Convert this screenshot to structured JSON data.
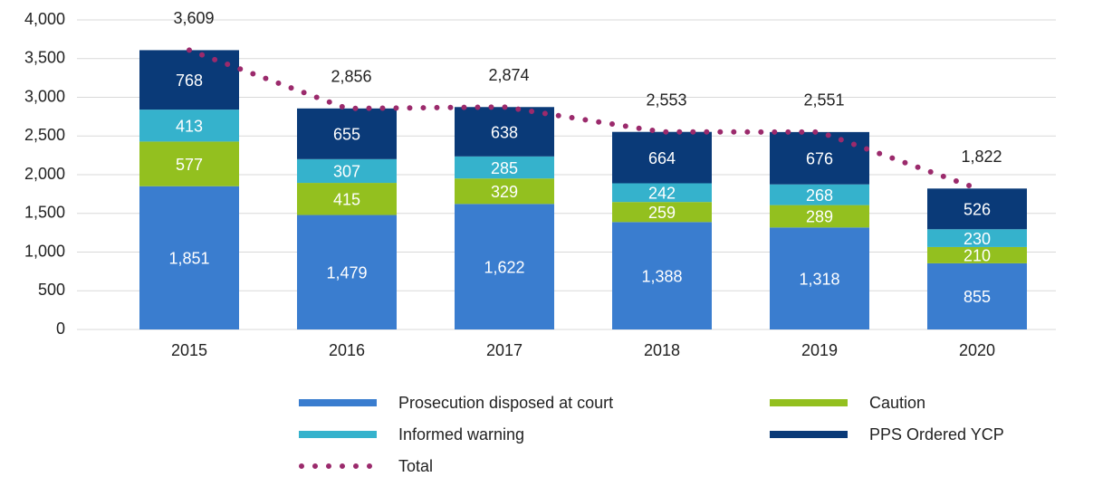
{
  "chart_data": {
    "type": "bar",
    "stacked": true,
    "categories": [
      "2015",
      "2016",
      "2017",
      "2018",
      "2019",
      "2020"
    ],
    "series": [
      {
        "name": "Prosecution disposed at court",
        "color": "#3a7dcf",
        "values": [
          1851,
          1479,
          1622,
          1388,
          1318,
          855
        ],
        "value_labels": [
          "1,851",
          "1,479",
          "1,622",
          "1,388",
          "1,318",
          "855"
        ]
      },
      {
        "name": "Caution",
        "color": "#93c01f",
        "values": [
          577,
          415,
          329,
          259,
          289,
          210
        ]
      },
      {
        "name": "Informed warning",
        "color": "#35b2cc",
        "values": [
          413,
          307,
          285,
          242,
          268,
          230
        ]
      },
      {
        "name": "PPS Ordered YCP",
        "color": "#0a3a78",
        "values": [
          768,
          655,
          638,
          664,
          676,
          526
        ]
      },
      {
        "name": "Total",
        "type": "line",
        "color": "#9b2a6c",
        "values": [
          3609,
          2856,
          2874,
          2553,
          2551,
          1822
        ],
        "value_labels": [
          "3,609",
          "2,856",
          "2,874",
          "2,553",
          "2,551",
          "1,822"
        ]
      }
    ],
    "ylim": [
      0,
      4000
    ],
    "yticks": [
      0,
      500,
      {
        "value": 1000,
        "label": "1,000"
      },
      {
        "value": 1500,
        "label": "1,500"
      },
      {
        "value": 2000,
        "label": "2,000"
      },
      {
        "value": 2500,
        "label": "2,500"
      },
      {
        "value": 3000,
        "label": "3,000"
      },
      {
        "value": 3500,
        "label": "3,500"
      },
      {
        "value": 4000,
        "label": "4,000"
      }
    ],
    "grid": true
  }
}
